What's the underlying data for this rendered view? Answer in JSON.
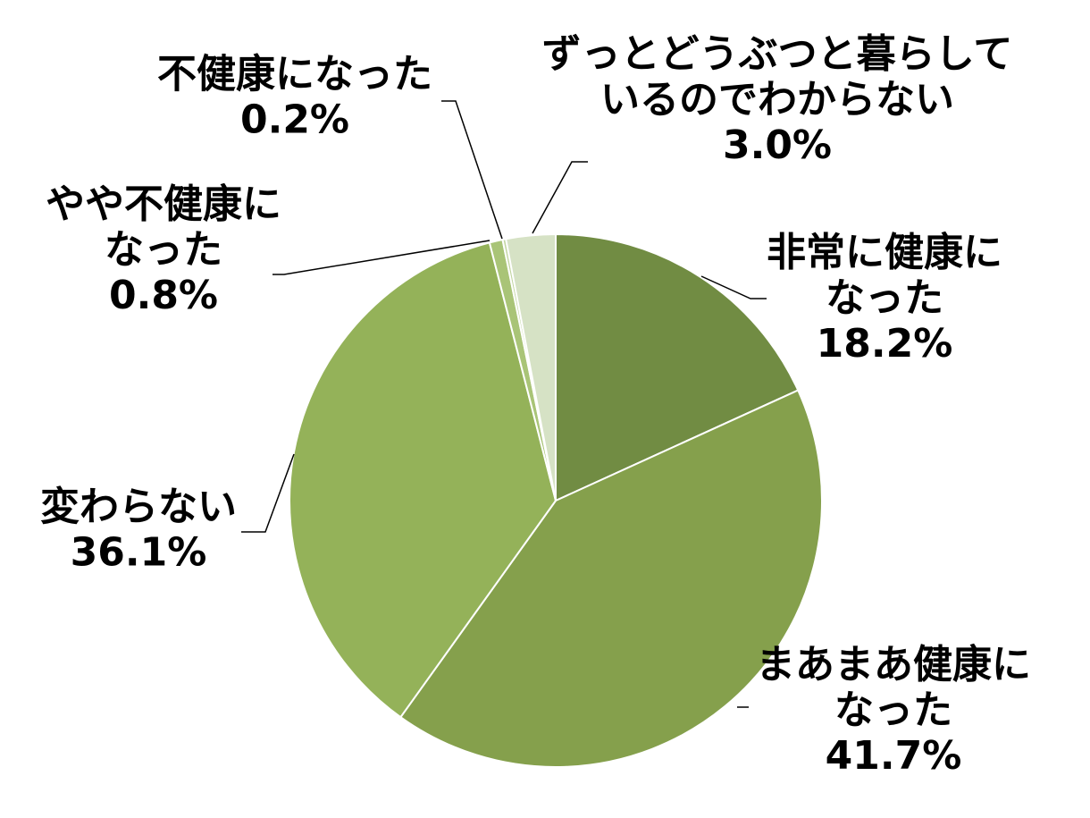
{
  "chart_data": {
    "type": "pie",
    "title": "",
    "slices": [
      {
        "label_lines": [
          "非常に健康に",
          "なった"
        ],
        "value": 18.2,
        "value_text": "18.2%",
        "color": "#718c43"
      },
      {
        "label_lines": [
          "まあまあ健康に",
          "なった"
        ],
        "value": 41.7,
        "value_text": "41.7%",
        "color": "#85a04c"
      },
      {
        "label_lines": [
          "変わらない"
        ],
        "value": 36.1,
        "value_text": "36.1%",
        "color": "#94b259"
      },
      {
        "label_lines": [
          "やや不健康に",
          "なった"
        ],
        "value": 0.8,
        "value_text": "0.8%",
        "color": "#a9c477"
      },
      {
        "label_lines": [
          "不健康になった"
        ],
        "value": 0.2,
        "value_text": "0.2%",
        "color": "#c3d6a2"
      },
      {
        "label_lines": [
          "ずっとどうぶつと暮らして",
          "いるのでわからない"
        ],
        "value": 3.0,
        "value_text": "3.0%",
        "color": "#d6e2c5"
      }
    ],
    "start_angle_deg": 0,
    "direction": "clockwise",
    "slice_border_color": "#ffffff",
    "leader_line_color": "#000000",
    "legend": "none"
  }
}
